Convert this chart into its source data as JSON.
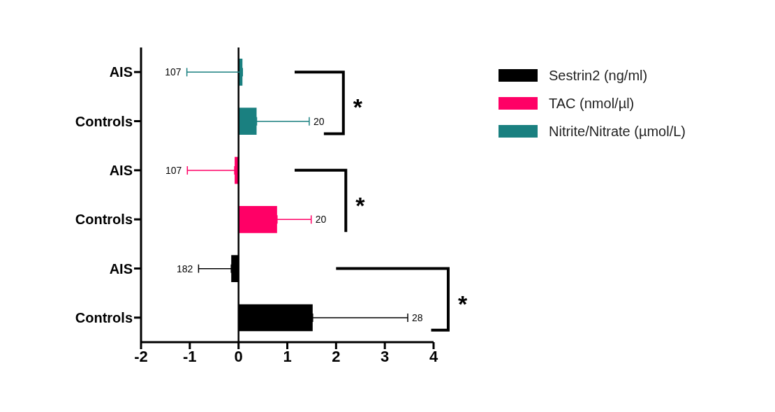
{
  "chart_data": {
    "type": "bar",
    "orientation": "horizontal",
    "categories": [
      "AIS",
      "Controls",
      "AIS",
      "Controls",
      "AIS",
      "Controls"
    ],
    "series": [
      {
        "name": "Sestrin2 (ng/ml)",
        "color": "#000000",
        "values": [
          null,
          null,
          null,
          null,
          -0.15,
          1.52
        ],
        "errors": [
          null,
          null,
          null,
          null,
          [
            -0.82,
            -0.15
          ],
          [
            1.52,
            3.47
          ]
        ]
      },
      {
        "name": "TAC (nmol/µl)",
        "color": "#ff0066",
        "values": [
          null,
          null,
          -0.08,
          0.79,
          null,
          null
        ],
        "errors": [
          null,
          null,
          [
            -1.05,
            -0.08
          ],
          [
            0.79,
            1.49
          ],
          null,
          null
        ]
      },
      {
        "name": "Nitrite/Nitrate (µmol/L)",
        "color": "#1a8080",
        "values": [
          0.08,
          0.37,
          null,
          null,
          null,
          null
        ],
        "errors": [
          [
            -1.06,
            0.08
          ],
          [
            0.37,
            1.45
          ],
          null,
          null,
          null,
          null
        ]
      }
    ],
    "xlim": [
      -2,
      4
    ],
    "xticks": [
      -2,
      -1,
      0,
      1,
      2,
      3,
      4
    ],
    "legend": "top right",
    "annotations": [
      {
        "text": "107",
        "x": -1.06
      },
      {
        "text": "20",
        "x": 1.45
      },
      {
        "text": "107",
        "x": -1.05
      },
      {
        "text": "20",
        "x": 1.49
      },
      {
        "text": "182",
        "x": -0.82
      },
      {
        "text": "28",
        "x": 3.47
      },
      "*",
      "*",
      "*"
    ]
  }
}
